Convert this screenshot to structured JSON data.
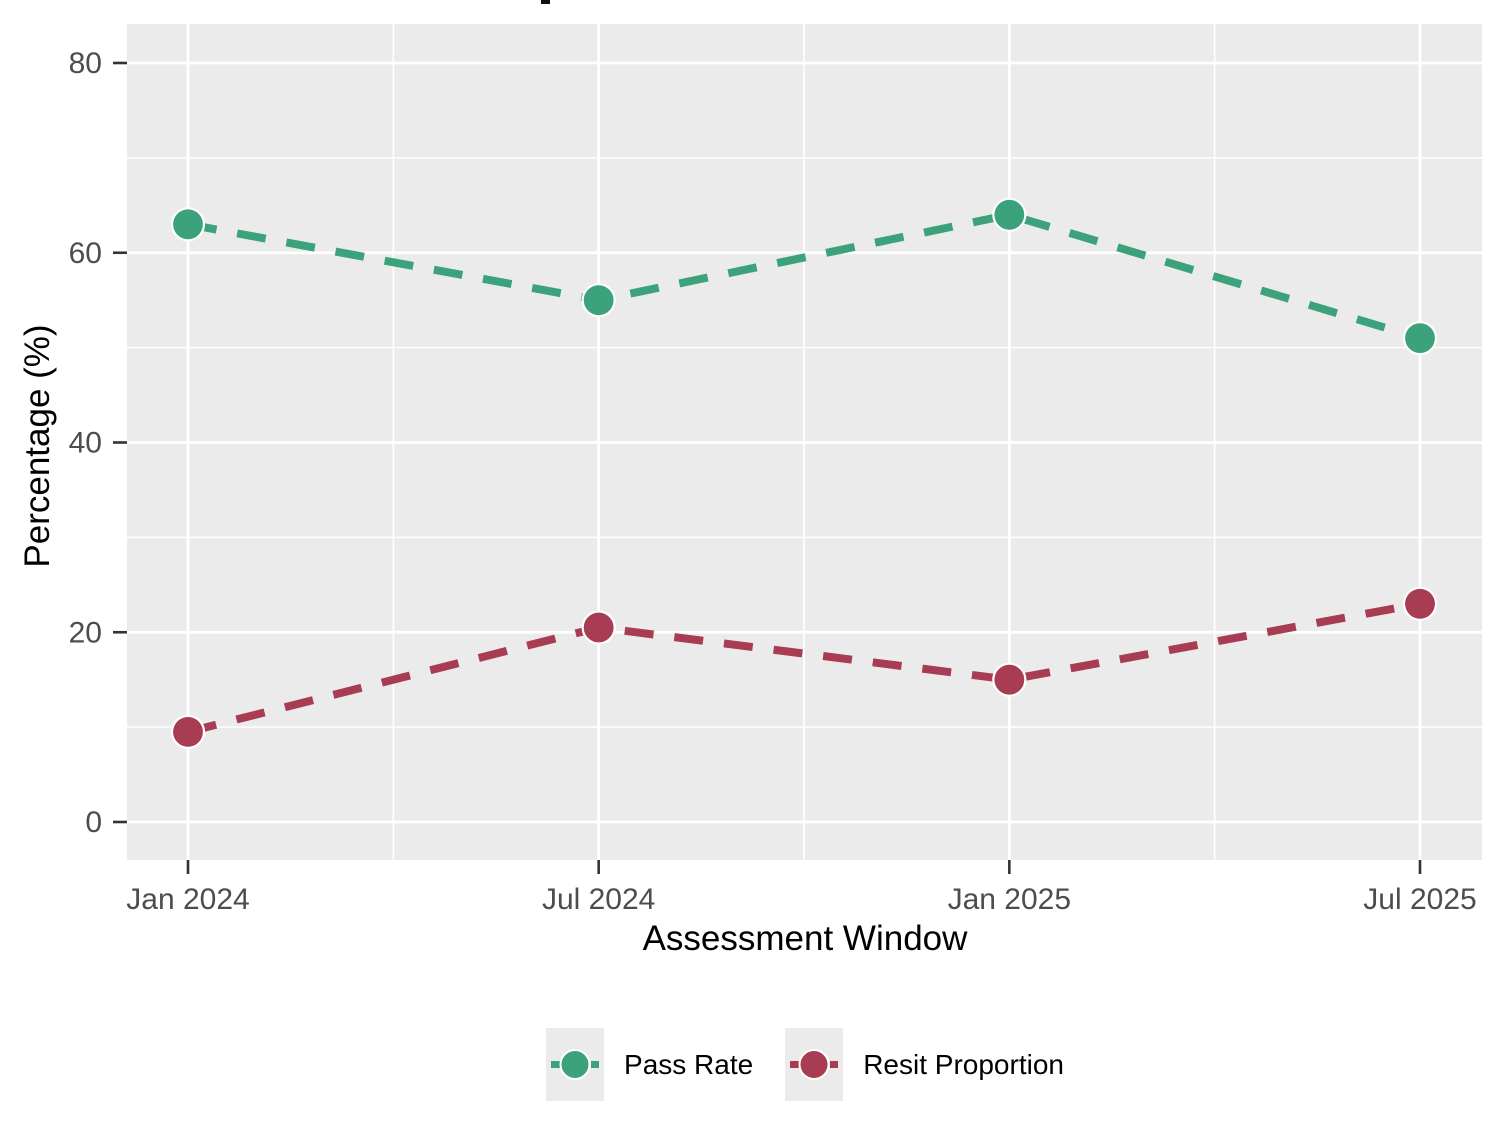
{
  "chart_data": {
    "type": "line",
    "categories": [
      "Jan 2024",
      "Jul 2024",
      "Jan 2025",
      "Jul 2025"
    ],
    "series": [
      {
        "name": "Pass Rate",
        "color": "#3BA27C",
        "values": [
          63,
          55,
          64,
          51
        ]
      },
      {
        "name": "Resit Proportion",
        "color": "#A83C52",
        "values": [
          9.5,
          20.5,
          15,
          23
        ]
      }
    ],
    "xlabel": "Assessment Window",
    "ylabel": "Percentage (%)",
    "y_ticks": [
      0,
      20,
      40,
      60,
      80
    ],
    "y_minor_ticks": [
      10,
      30,
      50,
      70
    ],
    "ylim": [
      -4,
      84
    ],
    "line_style": "dashed",
    "grid": "major+minor",
    "legend_position": "bottom",
    "panel_bg": "#EBEBEB",
    "grid_color": "#FFFFFF",
    "tick_mark_color": "#333333",
    "tick_label_color": "#4D4D4D"
  }
}
